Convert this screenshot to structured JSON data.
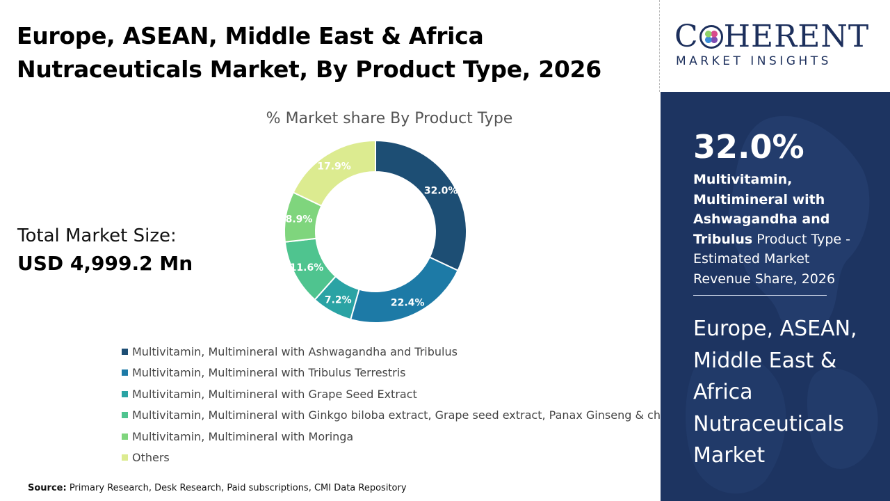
{
  "header": {
    "title": "Europe, ASEAN, Middle East & Africa Nutraceuticals Market, By Product Type, 2026"
  },
  "market": {
    "label": "Total Market Size:",
    "value": "USD 4,999.2 Mn"
  },
  "chart_data": {
    "type": "pie",
    "subtype": "donut",
    "title": "% Market share By Product Type",
    "legend_position": "bottom",
    "categories": [
      "Multivitamin, Multimineral with Ashwagandha and Tribulus",
      "Multivitamin, Multimineral with Tribulus Terrestris",
      "Multivitamin, Multimineral with Grape Seed Extract",
      "Multivitamin, Multimineral with Ginkgo biloba extract, Grape seed extract, Panax Ginseng & choline",
      "Multivitamin, Multimineral with Moringa",
      "Others"
    ],
    "values": [
      32.0,
      22.4,
      7.2,
      11.6,
      8.9,
      17.9
    ],
    "labels": [
      "32.0%",
      "22.4%",
      "7.2%",
      "11.6%",
      "8.9%",
      "17.9%"
    ],
    "colors": [
      "#1d4e74",
      "#1d7aa6",
      "#2aa3a4",
      "#4fc48f",
      "#7fd57d",
      "#dceb90"
    ]
  },
  "logo": {
    "main_before": "C",
    "main_after": "HERENT",
    "sub": "MARKET INSIGHTS"
  },
  "panel": {
    "stat_percent": "32.0%",
    "stat_bold": "Multivitamin, Multimineral with Ashwagandha and Tribulus",
    "stat_rest": " Product Type - Estimated Market Revenue Share, 2026",
    "region_title": "Europe, ASEAN, Middle East & Africa Nutraceuticals Market"
  },
  "source": {
    "label": "Source:",
    "text": " Primary Research, Desk Research, Paid subscriptions, CMI Data Repository"
  }
}
